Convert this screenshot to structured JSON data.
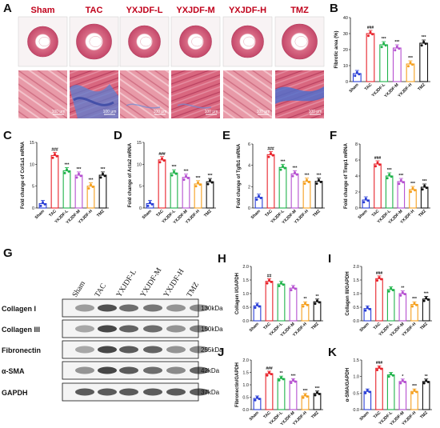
{
  "panel_labels": {
    "A": "A",
    "B": "B",
    "C": "C",
    "D": "D",
    "E": "E",
    "F": "F",
    "G": "G",
    "H": "H",
    "I": "I",
    "J": "J",
    "K": "K"
  },
  "groups": [
    "Sham",
    "TAC",
    "YXJDF-L",
    "YXJDF-M",
    "YXJDF-H",
    "TMZ"
  ],
  "colors": [
    "#2a3fd6",
    "#e8222a",
    "#1fb34a",
    "#b54fd0",
    "#f5a01e",
    "#111111"
  ],
  "scale_bar_label": "100 μm",
  "panel_A": {
    "top_row": "H&E whole heart",
    "bottom_row": "Masson staining"
  },
  "chart_data": [
    {
      "id": "B",
      "type": "bar",
      "ylabel": "Fibrotic area (%)",
      "yticks": [
        0,
        10,
        20,
        30,
        40
      ],
      "ylim": [
        0,
        40
      ],
      "values": [
        5,
        30,
        23,
        21,
        11,
        24
      ],
      "sig": [
        "",
        "###",
        "***",
        "***",
        "***",
        "***"
      ]
    },
    {
      "id": "C",
      "type": "bar",
      "ylabel": "Fold change of Col1a1 mRNA",
      "yticks": [
        0,
        5,
        10,
        15
      ],
      "ylim": [
        0,
        15
      ],
      "values": [
        1,
        12,
        8.5,
        7.5,
        5,
        7.5
      ],
      "sig": [
        "",
        "###",
        "***",
        "***",
        "***",
        "***"
      ]
    },
    {
      "id": "D",
      "type": "bar",
      "ylabel": "Fold change of Acta2 mRNA",
      "yticks": [
        0,
        5,
        10,
        15
      ],
      "ylim": [
        0,
        15
      ],
      "values": [
        1,
        11,
        8,
        7,
        5.5,
        6
      ],
      "sig": [
        "",
        "###",
        "***",
        "***",
        "***",
        "***"
      ]
    },
    {
      "id": "E",
      "type": "bar",
      "ylabel": "Fold change of Tgfb1 mRNA",
      "yticks": [
        0,
        2,
        4,
        6
      ],
      "ylim": [
        0,
        6
      ],
      "values": [
        1,
        5,
        3.8,
        3.2,
        2.5,
        2.5
      ],
      "sig": [
        "",
        "###",
        "***",
        "***",
        "***",
        "***"
      ]
    },
    {
      "id": "F",
      "type": "bar",
      "ylabel": "Fold change of Timp1 mRNA",
      "yticks": [
        0,
        2,
        4,
        6,
        8
      ],
      "ylim": [
        0,
        8
      ],
      "values": [
        1,
        5.5,
        4,
        3.3,
        2.3,
        2.6
      ],
      "sig": [
        "",
        "###",
        "***",
        "***",
        "***",
        "***"
      ]
    },
    {
      "id": "H",
      "type": "bar",
      "ylabel": "Collagen I/GAPDH",
      "yticks": [
        0.0,
        0.5,
        1.0,
        1.5,
        2.0
      ],
      "ylim": [
        0,
        2
      ],
      "values": [
        0.55,
        1.45,
        1.35,
        1.2,
        0.6,
        0.7
      ],
      "sig": [
        "",
        "##",
        "",
        "",
        "**",
        "**"
      ]
    },
    {
      "id": "I",
      "type": "bar",
      "ylabel": "Collagen III/GAPDH",
      "yticks": [
        0.0,
        0.5,
        1.0,
        1.5,
        2.0
      ],
      "ylim": [
        0,
        2
      ],
      "values": [
        0.45,
        1.55,
        1.15,
        1.0,
        0.6,
        0.8
      ],
      "sig": [
        "",
        "###",
        "",
        "**",
        "***",
        "***"
      ]
    },
    {
      "id": "J",
      "type": "bar",
      "ylabel": "Fibronectin/GAPDH",
      "yticks": [
        0.0,
        0.5,
        1.0,
        1.5,
        2.0
      ],
      "ylim": [
        0,
        2
      ],
      "values": [
        0.45,
        1.45,
        1.25,
        1.15,
        0.55,
        0.65
      ],
      "sig": [
        "",
        "###",
        "**",
        "***",
        "***",
        "***"
      ]
    },
    {
      "id": "K",
      "type": "bar",
      "ylabel": "α-SMA/GAPDH",
      "yticks": [
        0.0,
        0.5,
        1.0,
        1.5
      ],
      "ylim": [
        0,
        1.5
      ],
      "values": [
        0.55,
        1.25,
        1.05,
        0.85,
        0.55,
        0.85
      ],
      "sig": [
        "",
        "###",
        "",
        "*",
        "***",
        "**"
      ]
    }
  ],
  "western_blot": {
    "lanes": [
      "Sham",
      "TAC",
      "YXJDF-L",
      "YXJDF-M",
      "YXJDF-H",
      "TMZ"
    ],
    "proteins": [
      {
        "name": "Collagen I",
        "kda": "130kDa"
      },
      {
        "name": "Collagen III",
        "kda": "150kDa"
      },
      {
        "name": "Fibronectin",
        "kda": "255kDa"
      },
      {
        "name": "α-SMA",
        "kda": "42kDa"
      },
      {
        "name": "GAPDH",
        "kda": "37kDa"
      }
    ]
  }
}
